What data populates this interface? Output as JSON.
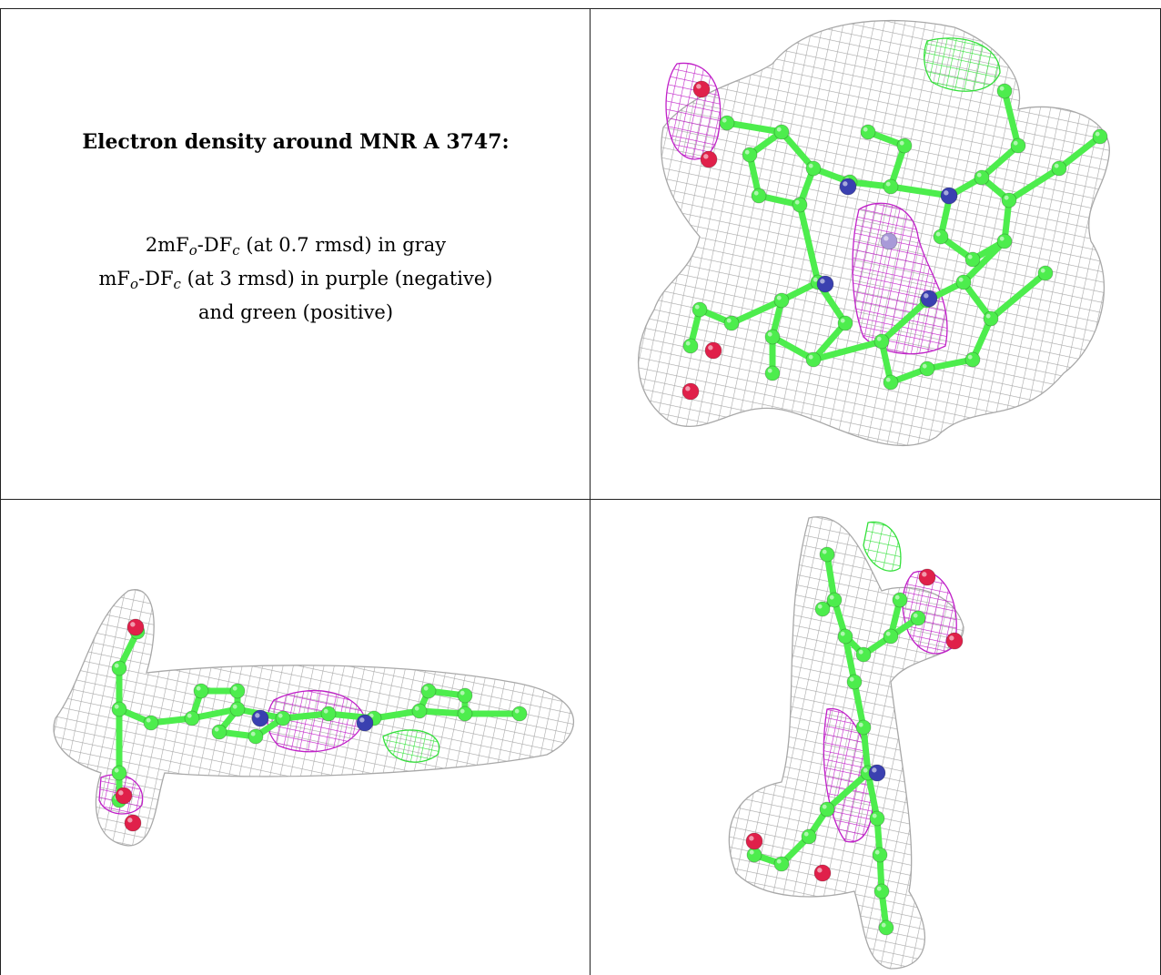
{
  "title": "Electron density around MNR A 3747:",
  "legend": {
    "line1": {
      "pre": "2mF",
      "sub1": "o",
      "mid": "-DF",
      "sub2": "c",
      "post": " (at 0.7 rmsd) in gray"
    },
    "line2": {
      "pre": "mF",
      "sub1": "o",
      "mid": "-DF",
      "sub2": "c",
      "post": " (at 3 rmsd) in purple (negative)"
    },
    "line3": "and green (positive)"
  },
  "colors": {
    "mesh_2fofc": "#a8a8a8",
    "mesh_negative": "#c020c8",
    "mesh_positive": "#33e03a",
    "carbon": "#4ded4d",
    "nitrogen": "#3a40b0",
    "oxygen": "#e0204a",
    "metal": "#a89ad8"
  },
  "panels": [
    {
      "view": "top-view",
      "icon": "molecule-view"
    },
    {
      "view": "edge-view",
      "icon": "molecule-view"
    },
    {
      "view": "side-view",
      "icon": "molecule-view"
    }
  ]
}
